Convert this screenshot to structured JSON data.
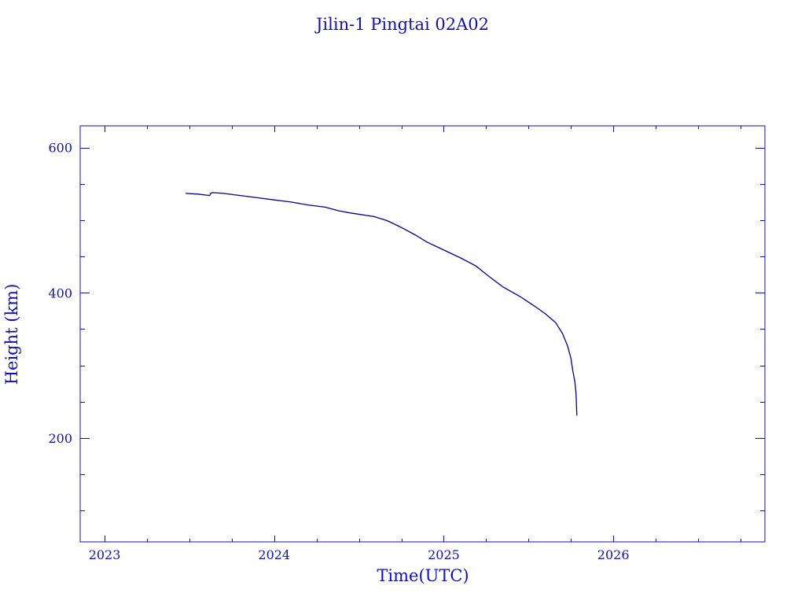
{
  "chart_data": {
    "type": "line",
    "title": "Jilin-1 Pingtai 02A02",
    "xlabel": "Time(UTC)",
    "ylabel": "Height (km)",
    "xlim": [
      2022.856,
      2026.894
    ],
    "ylim": [
      57,
      630
    ],
    "xticks": [
      2023,
      2024,
      2025,
      2026
    ],
    "xtick_labels": [
      "2023",
      "2024",
      "2025",
      "2026"
    ],
    "x_minor_step": 0.25,
    "yticks": [
      200,
      400,
      600
    ],
    "ytick_labels": [
      "200",
      "400",
      "600"
    ],
    "y_minor_step": 50,
    "grid": false,
    "series": [
      {
        "name": "Height",
        "color": "#00008b",
        "x": [
          2023.478,
          2023.55,
          2023.62,
          2023.625,
          2023.635,
          2023.7,
          2023.8,
          2023.9,
          2024.0,
          2024.1,
          2024.2,
          2024.3,
          2024.38,
          2024.45,
          2024.59,
          2024.67,
          2024.75,
          2024.83,
          2024.9,
          2025.0,
          2025.1,
          2025.19,
          2025.27,
          2025.35,
          2025.45,
          2025.54,
          2025.6,
          2025.66,
          2025.7,
          2025.73,
          2025.75,
          2025.76,
          2025.773,
          2025.78,
          2025.785
        ],
        "y": [
          537,
          536,
          534,
          537,
          538,
          537,
          534,
          531,
          528,
          525,
          521,
          518,
          513,
          510,
          505,
          499,
          490,
          480,
          470,
          459,
          448,
          437,
          422,
          408,
          395,
          381,
          371,
          359,
          344,
          327,
          310,
          294,
          278,
          262,
          231
        ]
      }
    ]
  }
}
